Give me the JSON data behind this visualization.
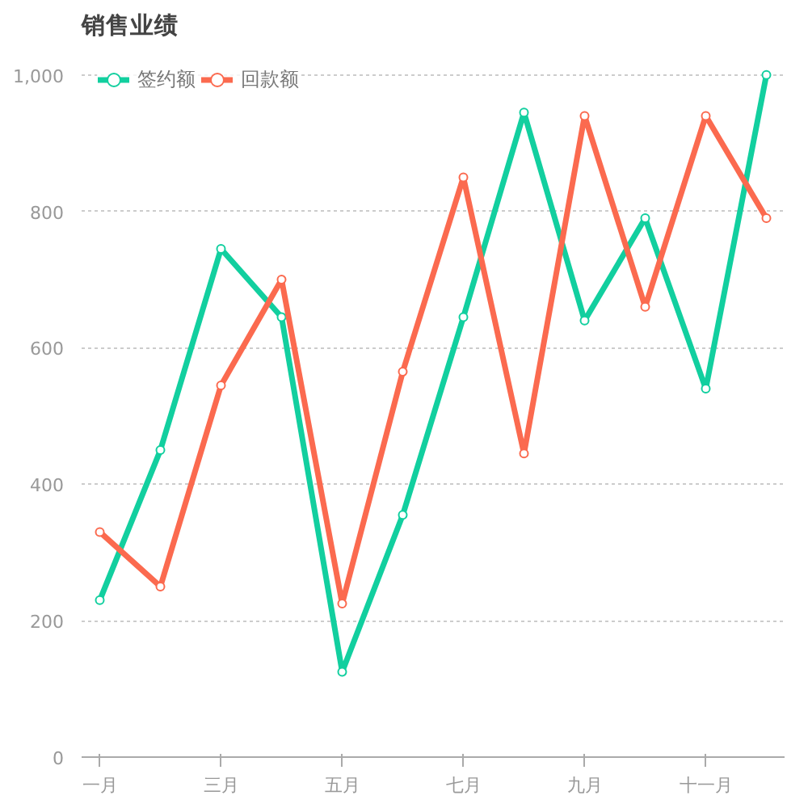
{
  "chart_data": {
    "type": "line",
    "title": "销售业绩",
    "categories": [
      "一月",
      null,
      "三月",
      null,
      "五月",
      null,
      "七月",
      null,
      "九月",
      null,
      "十一月",
      null
    ],
    "series": [
      {
        "name": "签约额",
        "color": "#12cf9f",
        "values": [
          230,
          450,
          745,
          645,
          125,
          355,
          645,
          945,
          640,
          790,
          540,
          1000
        ]
      },
      {
        "name": "回款额",
        "color": "#fb6a4f",
        "values": [
          330,
          250,
          545,
          700,
          225,
          565,
          850,
          445,
          940,
          660,
          940,
          790
        ]
      }
    ],
    "ylim": [
      0,
      1000
    ],
    "yticks": [
      0,
      200,
      400,
      600,
      800,
      {
        "value": 1000,
        "label": "1,000"
      }
    ],
    "grid": "y",
    "legend": "top left",
    "marker": "circle",
    "line_style": "solid"
  }
}
